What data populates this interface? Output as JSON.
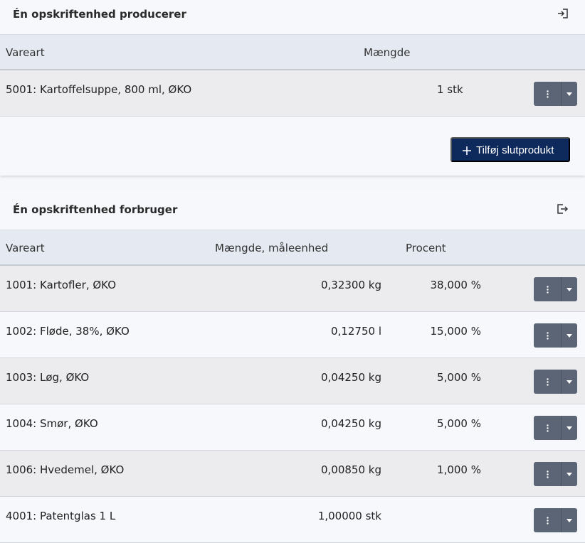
{
  "produces": {
    "title": "Én opskriftenhed producerer",
    "headers": {
      "item": "Vareart",
      "quantity": "Mængde"
    },
    "rows": [
      {
        "item": "5001: Kartoffelsuppe, 800 ml, ØKO",
        "quantity": "1 stk"
      }
    ],
    "add_button_label": "Tilføj slutprodukt"
  },
  "consumes": {
    "title": "Én opskriftenhed forbruger",
    "headers": {
      "item": "Vareart",
      "quantity": "Mængde, måleenhed",
      "percent": "Procent"
    },
    "rows": [
      {
        "item": "1001: Kartofler, ØKO",
        "quantity": "0,32300 kg",
        "percent": "38,000 %"
      },
      {
        "item": "1002: Fløde, 38%, ØKO",
        "quantity": "0,12750 l",
        "percent": "15,000 %"
      },
      {
        "item": "1003: Løg, ØKO",
        "quantity": "0,04250 kg",
        "percent": "5,000 %"
      },
      {
        "item": "1004: Smør, ØKO",
        "quantity": "0,04250 kg",
        "percent": "5,000 %"
      },
      {
        "item": "1006: Hvedemel, ØKO",
        "quantity": "0,00850 kg",
        "percent": "1,000 %"
      },
      {
        "item": "4001: Patentglas 1 L",
        "quantity": "1,00000 stk",
        "percent": ""
      }
    ]
  },
  "icons": {
    "produces_header": "sign-in-icon",
    "consumes_header": "sign-out-icon",
    "row_menu": "vertical-dots-icon",
    "row_dropdown": "caret-down-icon",
    "add": "plus-icon"
  },
  "colors": {
    "primary_button": "#0e2a5c",
    "row_action_button": "#5b6575",
    "table_header_bg": "#e5e9f1"
  }
}
